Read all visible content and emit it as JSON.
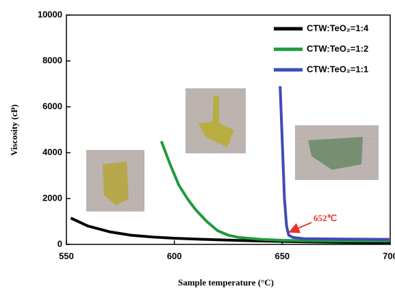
{
  "chart_data": {
    "type": "line",
    "xlabel": "Sample temperature (°C)",
    "ylabel": "Viscosity (cP)",
    "xlim": [
      550,
      700
    ],
    "xticks": [
      550,
      600,
      650,
      700
    ],
    "ylim": [
      0,
      10000
    ],
    "yticks": [
      0,
      2000,
      4000,
      6000,
      8000,
      10000
    ],
    "grid": false,
    "legend_position": "upper right",
    "annotation": "652℃",
    "series": [
      {
        "name": "CTW:TeO₂=1:4",
        "color": "#000000",
        "x": [
          552,
          560,
          570,
          580,
          590,
          600,
          610,
          620,
          630,
          640,
          650,
          660,
          670,
          680,
          690,
          700
        ],
        "values": [
          1150,
          800,
          550,
          400,
          320,
          270,
          230,
          200,
          170,
          150,
          130,
          110,
          100,
          90,
          80,
          80
        ]
      },
      {
        "name": "CTW:TeO₂=1:2",
        "color": "#1f9a3c",
        "x": [
          594,
          598,
          602,
          606,
          610,
          615,
          620,
          625,
          630,
          640,
          650,
          660,
          680,
          700
        ],
        "values": [
          4500,
          3500,
          2600,
          2000,
          1500,
          1000,
          600,
          400,
          300,
          220,
          180,
          160,
          150,
          150
        ]
      },
      {
        "name": "CTW:TeO₂=1:1",
        "color": "#3f4bb5",
        "x": [
          649,
          650,
          651,
          652,
          653,
          655,
          660,
          680,
          700
        ],
        "values": [
          6900,
          4500,
          2000,
          800,
          400,
          300,
          250,
          230,
          220
        ]
      }
    ]
  }
}
